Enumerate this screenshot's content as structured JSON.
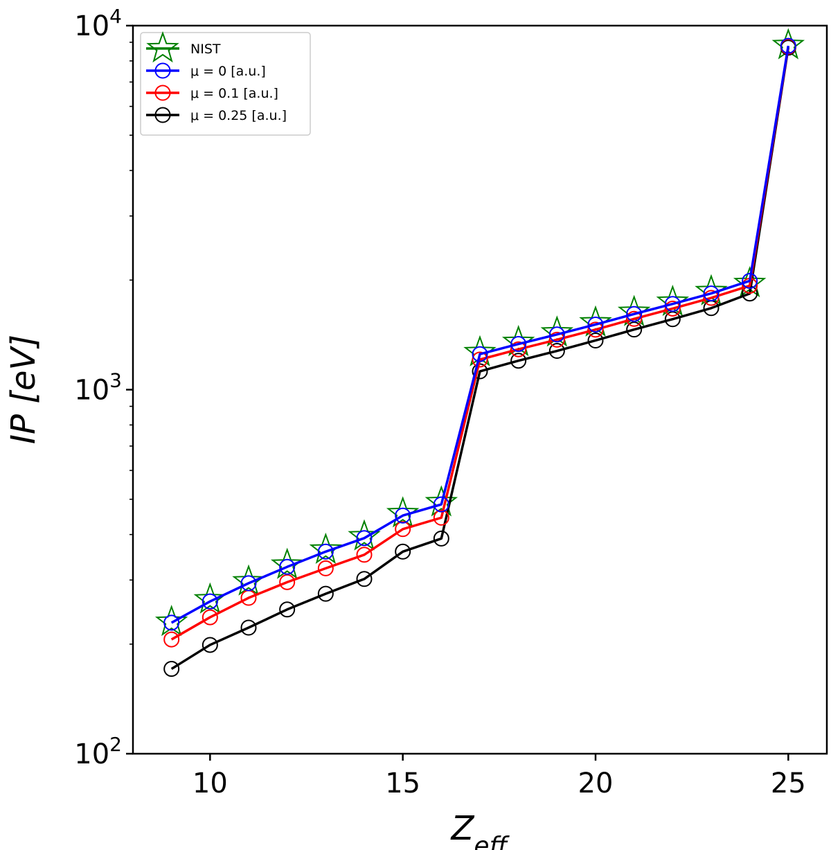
{
  "chart_data": {
    "type": "line",
    "title": "",
    "xlabel": {
      "main": "Z",
      "subscript": "eff"
    },
    "ylabel": {
      "main": "IP",
      "unit": " [eV]"
    },
    "yscale": "log",
    "xlim": [
      8,
      26
    ],
    "ylim": [
      100,
      10000
    ],
    "x_ticks": [
      10,
      15,
      20,
      25
    ],
    "y_ticks": [
      {
        "value": 100,
        "base": "10",
        "exp": "2"
      },
      {
        "value": 1000,
        "base": "10",
        "exp": "3"
      },
      {
        "value": 10000,
        "base": "10",
        "exp": "4"
      }
    ],
    "x": [
      9,
      10,
      11,
      12,
      13,
      14,
      15,
      16,
      17,
      18,
      19,
      20,
      21,
      22,
      23,
      24,
      25
    ],
    "series": [
      {
        "name": "NIST",
        "label": "NIST",
        "color": "#008000",
        "marker": "star",
        "line": false,
        "values": [
          230,
          265,
          297,
          330,
          363,
          395,
          457,
          490,
          1266,
          1350,
          1434,
          1528,
          1633,
          1741,
          1862,
          1960,
          8828
        ]
      },
      {
        "name": "mu0",
        "label": "μ = 0 [a.u.]",
        "color": "#0000ff",
        "marker": "circle",
        "line": true,
        "values": [
          229,
          262,
          294,
          326,
          359,
          391,
          451,
          484,
          1252,
          1335,
          1418,
          1510,
          1614,
          1720,
          1838,
          1990,
          8800
        ]
      },
      {
        "name": "mu01",
        "label": "μ = 0.1 [a.u.]",
        "color": "#ff0000",
        "marker": "circle",
        "line": true,
        "values": [
          206,
          237,
          268,
          296,
          323,
          352,
          414,
          445,
          1210,
          1291,
          1372,
          1462,
          1565,
          1670,
          1787,
          1930,
          8760
        ]
      },
      {
        "name": "mu025",
        "label": "μ = 0.25 [a.u.]",
        "color": "#000000",
        "marker": "circle",
        "line": true,
        "values": [
          171,
          199,
          222,
          249,
          275,
          302,
          359,
          390,
          1123,
          1201,
          1278,
          1365,
          1463,
          1562,
          1675,
          1837,
          8700
        ]
      }
    ],
    "legend": {
      "location": "upper-left"
    },
    "grid": false
  }
}
